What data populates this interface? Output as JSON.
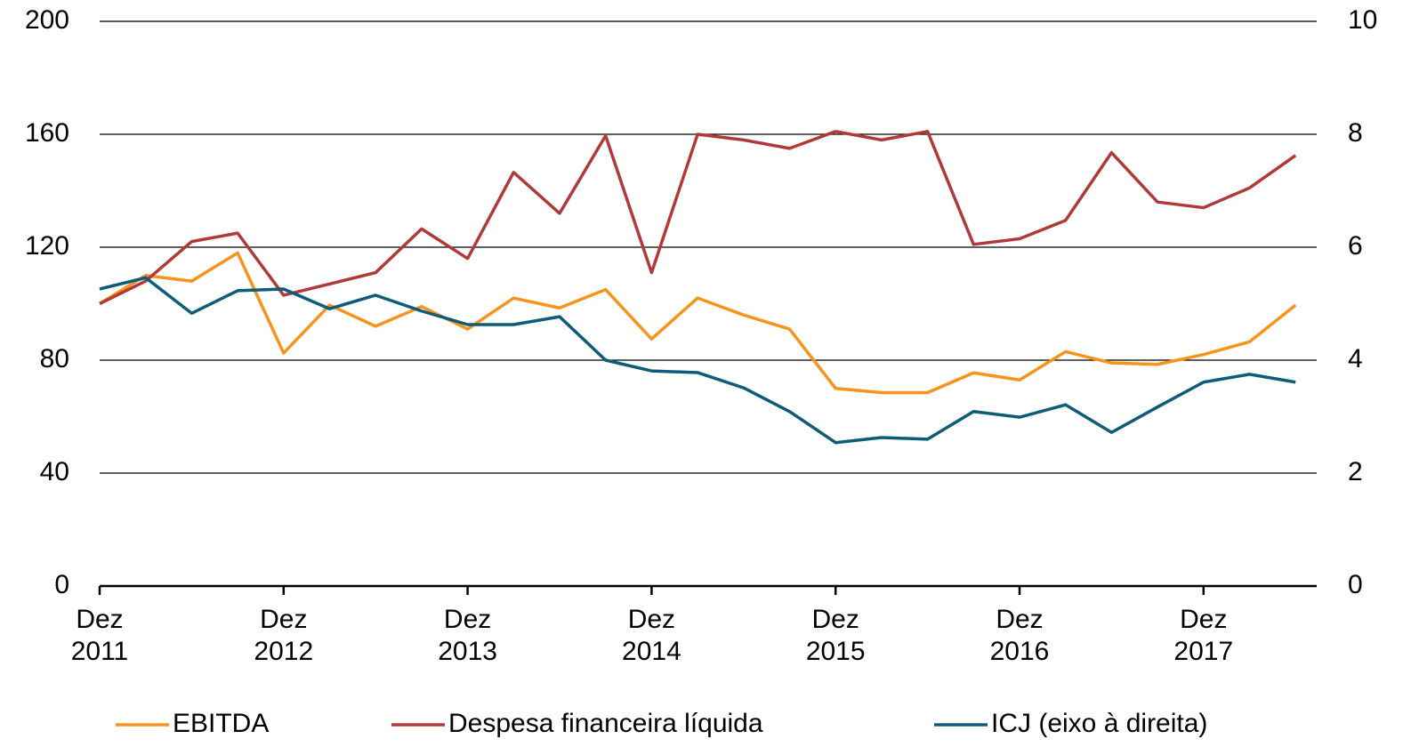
{
  "chart_data": {
    "type": "line",
    "categories": [
      "Dez 2011",
      null,
      null,
      null,
      "Dez 2012",
      null,
      null,
      null,
      "Dez 2013",
      null,
      null,
      null,
      "Dez 2014",
      null,
      null,
      null,
      "Dez 2015",
      null,
      null,
      null,
      "Dez 2016",
      null,
      null,
      null,
      "Dez 2017",
      null,
      null
    ],
    "series": [
      {
        "name": "EBITDA",
        "color": "#f7941d",
        "values": [
          100,
          110,
          108,
          118,
          82.5,
          99.5,
          92,
          99,
          91,
          102,
          98.5,
          105,
          87.5,
          102,
          96,
          91,
          70,
          68.5,
          68.5,
          75.5,
          73,
          83,
          79,
          78.5,
          82,
          86.5,
          99.5
        ]
      },
      {
        "name": "Despesa financeira líquida",
        "color": "#b03a3a",
        "values": [
          100,
          108,
          122,
          125,
          103,
          107,
          111,
          126.5,
          116,
          146.5,
          132,
          159.5,
          111,
          160,
          158,
          155,
          161,
          158,
          161,
          121,
          123,
          129.5,
          153.5,
          136,
          134,
          141,
          152.5
        ]
      },
      {
        "name": "ICJ (eixo à direita)",
        "color": "#0e5c7a",
        "axis": "y2",
        "values": [
          5.26,
          5.46,
          4.83,
          5.23,
          5.26,
          4.91,
          5.15,
          4.87,
          4.63,
          4.63,
          4.77,
          4.0,
          3.81,
          3.78,
          3.51,
          3.09,
          2.54,
          2.63,
          2.6,
          3.09,
          2.99,
          3.21,
          2.72,
          3.17,
          3.61,
          3.75,
          3.61
        ]
      }
    ],
    "ylim": [
      0,
      200
    ],
    "yticks": [
      0,
      40,
      80,
      120,
      160,
      200
    ],
    "y2lim": [
      0,
      10
    ],
    "y2ticks": [
      0,
      2,
      4,
      6,
      8,
      10
    ],
    "grid": true,
    "legend": "bottom"
  }
}
